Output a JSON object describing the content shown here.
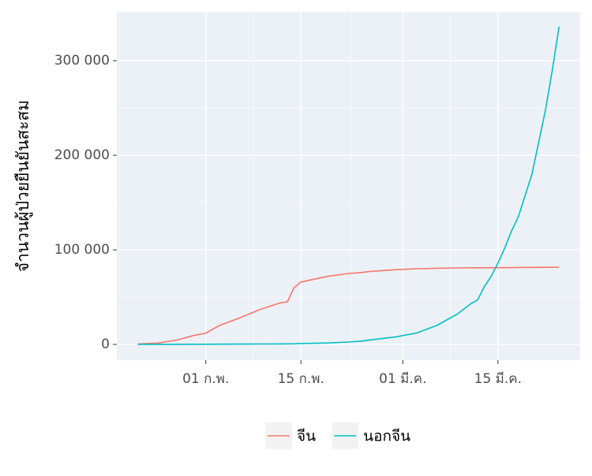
{
  "chart_data": {
    "type": "line",
    "y_label": "จำนวนผู้ป่วยยืนยันสะสม",
    "x": [
      22,
      25,
      28,
      30,
      32,
      34,
      37,
      40,
      43,
      44,
      45,
      46,
      50,
      53,
      55,
      56,
      60,
      63,
      66,
      69,
      71,
      72,
      73,
      74,
      75,
      76,
      77,
      78,
      80,
      82,
      83,
      84
    ],
    "xlim": [
      18.9,
      87.1
    ],
    "xticks": [
      {
        "value": 32,
        "label": "01 ก.พ."
      },
      {
        "value": 46,
        "label": "15 ก.พ."
      },
      {
        "value": 61,
        "label": "01 มี.ค."
      },
      {
        "value": 75,
        "label": "15 มี.ค."
      }
    ],
    "ylim": [
      -16667,
      351667
    ],
    "yticks": [
      {
        "value": 0,
        "label": "0"
      },
      {
        "value": 100000,
        "label": "100 000"
      },
      {
        "value": 200000,
        "label": "200 000"
      },
      {
        "value": 300000,
        "label": "300 000"
      }
    ],
    "grid": true,
    "legend": "bottom",
    "series": [
      {
        "name": "จีน",
        "color": "#F8766D",
        "values": [
          500,
          1400,
          5000,
          9000,
          12000,
          20000,
          28000,
          37000,
          44000,
          45000,
          60000,
          66000,
          72000,
          75000,
          76000,
          77000,
          79000,
          80000,
          80500,
          80800,
          81000,
          81000,
          81000,
          81100,
          81100,
          81200,
          81200,
          81300,
          81400,
          81500,
          81600,
          81700
        ]
      },
      {
        "name": "นอกจีน",
        "color": "#00BFC4",
        "values": [
          0,
          50,
          100,
          150,
          200,
          250,
          300,
          400,
          500,
          600,
          700,
          900,
          1500,
          2500,
          3500,
          4500,
          8000,
          12000,
          20000,
          32000,
          43000,
          47000,
          61000,
          72000,
          86000,
          102000,
          120000,
          135000,
          180000,
          248000,
          290000,
          336000
        ]
      }
    ]
  }
}
